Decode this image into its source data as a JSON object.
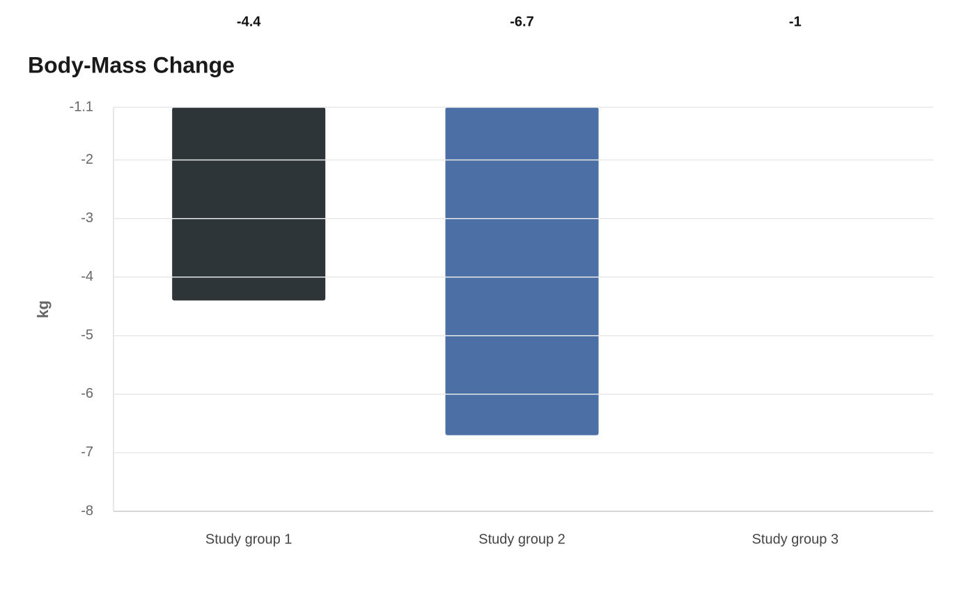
{
  "chart_data": {
    "type": "bar",
    "title": "Body-Mass Change",
    "y_label": "kg",
    "categories": [
      "Study group 1",
      "Study group 2",
      "Study group 3"
    ],
    "values": [
      -4.4,
      -6.7,
      -1
    ],
    "colors": [
      "#2e3538",
      "#4c6fa5",
      "#6b8e5a"
    ],
    "ylim": [
      -8,
      -1.1
    ],
    "yticks": [
      -1.1,
      -2,
      -3,
      -4,
      -5,
      -6,
      -7,
      -8
    ],
    "grid": true
  }
}
